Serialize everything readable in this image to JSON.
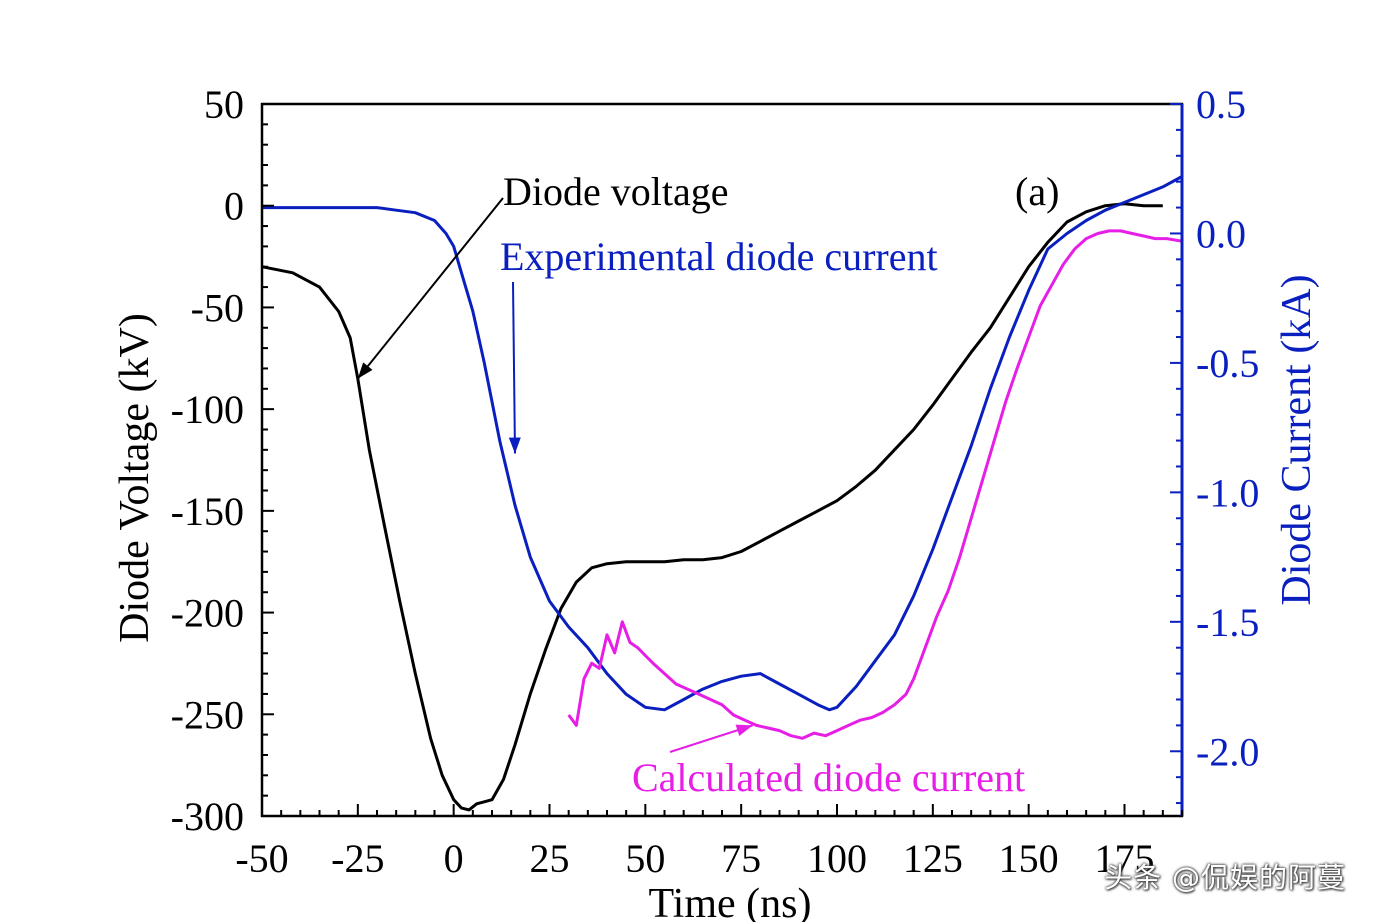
{
  "chart_data": {
    "type": "line",
    "panel_label": "(a)",
    "xlabel": "Time (ns)",
    "ylabel_left": "Diode Voltage (kV)",
    "ylabel_right": "Diode Current (kA)",
    "xlim": [
      -50,
      190
    ],
    "ylim_left": [
      -300,
      50
    ],
    "ylim_right": [
      -2.25,
      0.5
    ],
    "x_ticks": [
      -50,
      -25,
      0,
      25,
      50,
      75,
      100,
      125,
      150,
      175
    ],
    "x_tick_labels": [
      "-50",
      "-25",
      "0",
      "25",
      "50",
      "75",
      "100",
      "125",
      "150",
      "175"
    ],
    "y_left_ticks": [
      50,
      0,
      -50,
      -100,
      -150,
      -200,
      -250,
      -300
    ],
    "y_left_tick_labels": [
      "50",
      "0",
      "-50",
      "-100",
      "-150",
      "-200",
      "-250",
      "-300"
    ],
    "y_right_ticks": [
      0.5,
      0.0,
      -0.5,
      -1.0,
      -1.5,
      -2.0
    ],
    "y_right_tick_labels": [
      "0.5",
      "0.0",
      "-0.5",
      "-1.0",
      "-1.5",
      "-2.0"
    ],
    "series": [
      {
        "name": "Diode voltage",
        "axis": "left",
        "color": "#000000",
        "x": [
          -50,
          -42,
          -35,
          -30,
          -27,
          -25,
          -22,
          -18,
          -14,
          -10,
          -6,
          -3,
          0,
          2,
          4,
          6,
          8,
          10,
          13,
          16,
          20,
          24,
          28,
          32,
          36,
          40,
          45,
          50,
          55,
          60,
          65,
          70,
          75,
          80,
          85,
          90,
          95,
          100,
          105,
          110,
          115,
          120,
          125,
          130,
          135,
          140,
          145,
          150,
          155,
          160,
          165,
          170,
          175,
          180,
          185
        ],
        "y": [
          -30,
          -33,
          -40,
          -52,
          -65,
          -85,
          -120,
          -158,
          -195,
          -230,
          -262,
          -280,
          -292,
          -296,
          -297,
          -294,
          -293,
          -292,
          -282,
          -265,
          -240,
          -218,
          -198,
          -185,
          -178,
          -176,
          -175,
          -175,
          -175,
          -174,
          -174,
          -173,
          -170,
          -165,
          -160,
          -155,
          -150,
          -145,
          -138,
          -130,
          -120,
          -110,
          -98,
          -85,
          -72,
          -60,
          -45,
          -30,
          -18,
          -8,
          -3,
          0,
          1,
          0,
          0
        ]
      },
      {
        "name": "Experimental diode current",
        "axis": "right",
        "color": "#0a1fbf",
        "x": [
          -50,
          -40,
          -30,
          -20,
          -15,
          -10,
          -5,
          -2,
          0,
          2,
          5,
          8,
          12,
          16,
          20,
          25,
          30,
          35,
          40,
          45,
          50,
          55,
          60,
          65,
          70,
          75,
          80,
          85,
          90,
          95,
          98,
          100,
          105,
          110,
          115,
          120,
          125,
          130,
          135,
          140,
          145,
          150,
          155,
          160,
          165,
          170,
          175,
          180,
          185,
          190
        ],
        "y": [
          0.1,
          0.1,
          0.1,
          0.1,
          0.09,
          0.08,
          0.05,
          0.0,
          -0.05,
          -0.15,
          -0.3,
          -0.5,
          -0.8,
          -1.05,
          -1.25,
          -1.42,
          -1.52,
          -1.6,
          -1.7,
          -1.78,
          -1.83,
          -1.84,
          -1.8,
          -1.76,
          -1.73,
          -1.71,
          -1.7,
          -1.74,
          -1.78,
          -1.82,
          -1.84,
          -1.83,
          -1.75,
          -1.65,
          -1.55,
          -1.4,
          -1.22,
          -1.02,
          -0.82,
          -0.6,
          -0.4,
          -0.22,
          -0.06,
          0.0,
          0.05,
          0.09,
          0.12,
          0.15,
          0.18,
          0.22
        ]
      },
      {
        "name": "Calculated diode current",
        "axis": "right",
        "color": "#e61ee6",
        "x": [
          30,
          32,
          34,
          36,
          38,
          40,
          42,
          44,
          46,
          48,
          50,
          52,
          55,
          58,
          61,
          64,
          67,
          70,
          73,
          76,
          79,
          82,
          85,
          88,
          91,
          94,
          97,
          100,
          103,
          106,
          109,
          112,
          115,
          118,
          120,
          123,
          126,
          129,
          132,
          135,
          138,
          141,
          144,
          147,
          150,
          153,
          156,
          159,
          162,
          165,
          168,
          171,
          174,
          177,
          180,
          183,
          186,
          190
        ],
        "y": [
          -1.86,
          -1.9,
          -1.72,
          -1.66,
          -1.68,
          -1.55,
          -1.62,
          -1.5,
          -1.58,
          -1.6,
          -1.63,
          -1.66,
          -1.7,
          -1.74,
          -1.76,
          -1.78,
          -1.8,
          -1.82,
          -1.86,
          -1.88,
          -1.9,
          -1.91,
          -1.92,
          -1.94,
          -1.95,
          -1.93,
          -1.94,
          -1.92,
          -1.9,
          -1.88,
          -1.87,
          -1.85,
          -1.82,
          -1.78,
          -1.72,
          -1.6,
          -1.48,
          -1.38,
          -1.25,
          -1.1,
          -0.95,
          -0.8,
          -0.65,
          -0.52,
          -0.4,
          -0.28,
          -0.2,
          -0.12,
          -0.06,
          -0.02,
          0.0,
          0.01,
          0.01,
          0.0,
          -0.01,
          -0.02,
          -0.02,
          -0.03
        ]
      }
    ],
    "annotations": [
      {
        "text": "Diode voltage",
        "arrow_to": {
          "x": -25,
          "y": -85,
          "axis": "left"
        }
      },
      {
        "text": "Experimental diode current",
        "arrow_to": {
          "x": 16,
          "y": -0.85,
          "axis": "right"
        }
      },
      {
        "text": "Calculated diode current",
        "arrow_to": {
          "x": 78,
          "y": -1.9,
          "axis": "right"
        }
      }
    ],
    "grid": false,
    "colors": {
      "left_axis": "#000000",
      "right_axis": "#0a1fbf",
      "calc": "#e61ee6"
    }
  },
  "watermark": "头条 @侃娱的阿蔓"
}
